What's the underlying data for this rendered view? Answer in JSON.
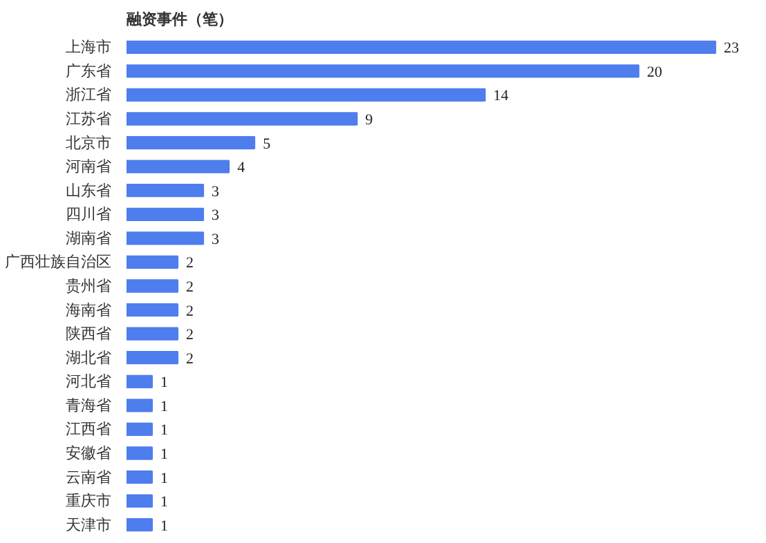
{
  "chart_data": {
    "type": "bar",
    "orientation": "horizontal",
    "title": "融资事件（笔）",
    "categories": [
      "上海市",
      "广东省",
      "浙江省",
      "江苏省",
      "北京市",
      "河南省",
      "山东省",
      "四川省",
      "湖南省",
      "广西壮族自治区",
      "贵州省",
      "海南省",
      "陕西省",
      "湖北省",
      "河北省",
      "青海省",
      "江西省",
      "安徽省",
      "云南省",
      "重庆市",
      "天津市"
    ],
    "values": [
      23,
      20,
      14,
      9,
      5,
      4,
      3,
      3,
      3,
      2,
      2,
      2,
      2,
      2,
      1,
      1,
      1,
      1,
      1,
      1,
      1
    ],
    "color": "#4e7ded",
    "data_labels": true
  }
}
